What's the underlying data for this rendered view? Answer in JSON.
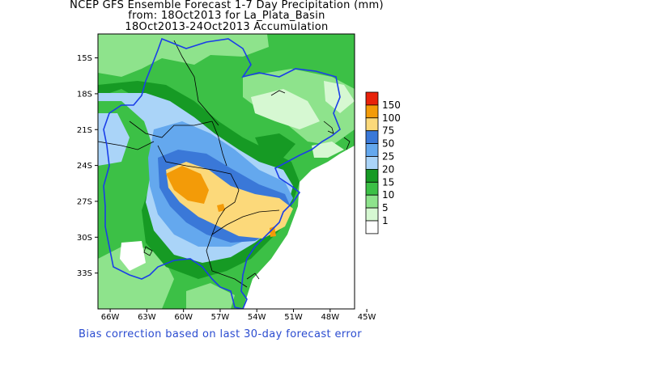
{
  "title": {
    "line1": "NCEP GFS Ensemble Forecast 1-7 Day Precipitation (mm)",
    "line2": "from: 18Oct2013   for La_Plata_Basin",
    "line3": "18Oct2013-24Oct2013 Accumulation"
  },
  "footer": "Bias correction based on last 30-day forecast error",
  "axes": {
    "lat_labels": [
      "15S",
      "18S",
      "21S",
      "24S",
      "27S",
      "30S",
      "33S"
    ],
    "lon_labels": [
      "66W",
      "63W",
      "60W",
      "57W",
      "54W",
      "51W",
      "48W",
      "45W"
    ],
    "lat_range": [
      -36,
      -13
    ],
    "lon_range": [
      -67,
      -46
    ]
  },
  "legend": {
    "levels": [
      {
        "label": "150",
        "color": "#e8220a"
      },
      {
        "label": "100",
        "color": "#f39b08"
      },
      {
        "label": "75",
        "color": "#fcd97a"
      },
      {
        "label": "50",
        "color": "#3a78d8"
      },
      {
        "label": "25",
        "color": "#64a8ee"
      },
      {
        "label": "20",
        "color": "#aad4f8"
      },
      {
        "label": "15",
        "color": "#169a24"
      },
      {
        "label": "10",
        "color": "#3cc046"
      },
      {
        "label": "5",
        "color": "#8ee38c"
      },
      {
        "label": "1",
        "color": "#d6f8d2"
      },
      {
        "label": "",
        "color": "#ffffff"
      }
    ]
  },
  "colors": {
    "basin_outline": "#1a3ee8",
    "borders": "#000000"
  }
}
